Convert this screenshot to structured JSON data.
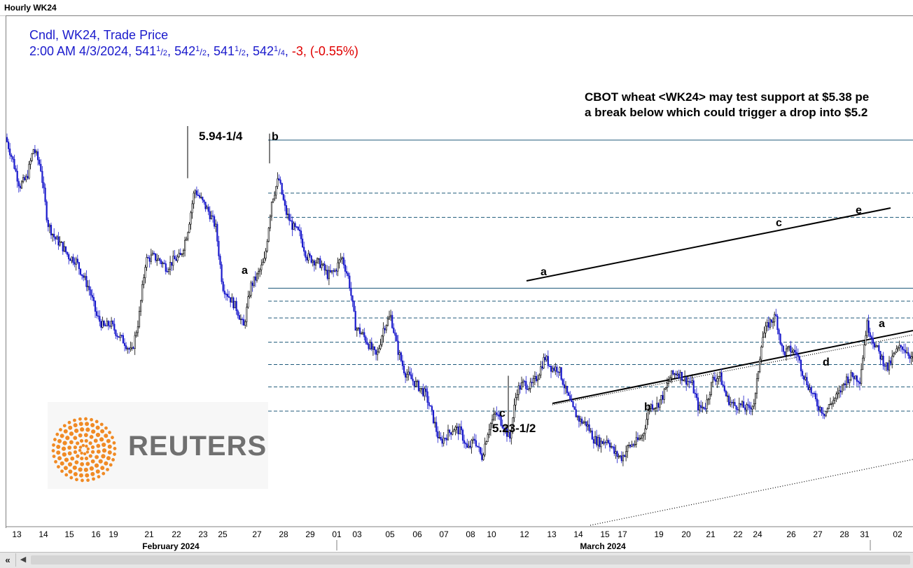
{
  "window": {
    "title": "Hourly WK24"
  },
  "header": {
    "line1": "Cndl, WK24, Trade Price",
    "datetime": "2:00 AM 4/3/2024,",
    "ohlc": [
      {
        "int": "541",
        "num": "1",
        "den": "2",
        "sep": ","
      },
      {
        "int": "542",
        "num": "1",
        "den": "2",
        "sep": ","
      },
      {
        "int": "541",
        "num": "1",
        "den": "2",
        "sep": ","
      },
      {
        "int": "542",
        "num": "1",
        "den": "4",
        "sep": ","
      }
    ],
    "change": "-3, (-0.55%)",
    "colors": {
      "text": "#1a1acc",
      "change": "#e00000"
    }
  },
  "headline": {
    "line1": "CBOT wheat <WK24> may test support at $5.38 pe",
    "line2": "a break below which could trigger a drop into $5.2"
  },
  "logo": {
    "text": "REUTERS",
    "color": "#f08a24"
  },
  "chart_data": {
    "type": "candlestick",
    "instrument": "WK24",
    "interval": "Hourly",
    "x_axis": {
      "tick_labels": [
        "13",
        "14",
        "15",
        "16",
        "19",
        "21",
        "22",
        "23",
        "25",
        "27",
        "28",
        "29",
        "01",
        "03",
        "05",
        "06",
        "07",
        "08",
        "10",
        "12",
        "13",
        "14",
        "15",
        "17",
        "19",
        "20",
        "21",
        "22",
        "24",
        "26",
        "27",
        "28",
        "31",
        "02"
      ],
      "month_labels": [
        "February 2024",
        "March 2024"
      ]
    },
    "y_range": [
      5.02,
      6.16
    ],
    "approx_close_path": [
      [
        0,
        5.95
      ],
      [
        10,
        5.89
      ],
      [
        20,
        5.82
      ],
      [
        30,
        5.84
      ],
      [
        40,
        5.92
      ],
      [
        50,
        5.87
      ],
      [
        60,
        5.72
      ],
      [
        70,
        5.68
      ],
      [
        80,
        5.66
      ],
      [
        90,
        5.63
      ],
      [
        100,
        5.62
      ],
      [
        110,
        5.58
      ],
      [
        120,
        5.54
      ],
      [
        130,
        5.47
      ],
      [
        140,
        5.44
      ],
      [
        150,
        5.45
      ],
      [
        160,
        5.42
      ],
      [
        170,
        5.4
      ],
      [
        180,
        5.37
      ],
      [
        190,
        5.46
      ],
      [
        200,
        5.62
      ],
      [
        210,
        5.63
      ],
      [
        220,
        5.62
      ],
      [
        230,
        5.6
      ],
      [
        240,
        5.62
      ],
      [
        250,
        5.63
      ],
      [
        260,
        5.7
      ],
      [
        270,
        5.81
      ],
      [
        280,
        5.78
      ],
      [
        290,
        5.75
      ],
      [
        300,
        5.71
      ],
      [
        310,
        5.55
      ],
      [
        320,
        5.52
      ],
      [
        330,
        5.49
      ],
      [
        340,
        5.44
      ],
      [
        350,
        5.55
      ],
      [
        360,
        5.58
      ],
      [
        370,
        5.62
      ],
      [
        380,
        5.78
      ],
      [
        390,
        5.84
      ],
      [
        400,
        5.75
      ],
      [
        410,
        5.71
      ],
      [
        420,
        5.69
      ],
      [
        430,
        5.63
      ],
      [
        440,
        5.62
      ],
      [
        450,
        5.61
      ],
      [
        460,
        5.58
      ],
      [
        470,
        5.59
      ],
      [
        480,
        5.63
      ],
      [
        490,
        5.57
      ],
      [
        500,
        5.44
      ],
      [
        510,
        5.42
      ],
      [
        520,
        5.39
      ],
      [
        530,
        5.36
      ],
      [
        540,
        5.44
      ],
      [
        550,
        5.47
      ],
      [
        560,
        5.38
      ],
      [
        570,
        5.32
      ],
      [
        580,
        5.3
      ],
      [
        590,
        5.28
      ],
      [
        600,
        5.26
      ],
      [
        610,
        5.2
      ],
      [
        620,
        5.13
      ],
      [
        630,
        5.15
      ],
      [
        640,
        5.17
      ],
      [
        650,
        5.16
      ],
      [
        660,
        5.11
      ],
      [
        670,
        5.14
      ],
      [
        680,
        5.09
      ],
      [
        690,
        5.17
      ],
      [
        700,
        5.21
      ],
      [
        710,
        5.18
      ],
      [
        720,
        5.14
      ],
      [
        730,
        5.27
      ],
      [
        740,
        5.29
      ],
      [
        750,
        5.28
      ],
      [
        760,
        5.31
      ],
      [
        770,
        5.36
      ],
      [
        780,
        5.33
      ],
      [
        790,
        5.33
      ],
      [
        800,
        5.27
      ],
      [
        810,
        5.22
      ],
      [
        820,
        5.19
      ],
      [
        830,
        5.18
      ],
      [
        840,
        5.14
      ],
      [
        850,
        5.13
      ],
      [
        860,
        5.14
      ],
      [
        870,
        5.1
      ],
      [
        880,
        5.09
      ],
      [
        890,
        5.12
      ],
      [
        900,
        5.13
      ],
      [
        910,
        5.15
      ],
      [
        920,
        5.23
      ],
      [
        930,
        5.23
      ],
      [
        940,
        5.26
      ],
      [
        950,
        5.31
      ],
      [
        960,
        5.32
      ],
      [
        970,
        5.3
      ],
      [
        980,
        5.29
      ],
      [
        990,
        5.22
      ],
      [
        1000,
        5.23
      ],
      [
        1010,
        5.3
      ],
      [
        1020,
        5.31
      ],
      [
        1030,
        5.25
      ],
      [
        1040,
        5.23
      ],
      [
        1050,
        5.23
      ],
      [
        1060,
        5.22
      ],
      [
        1070,
        5.24
      ],
      [
        1080,
        5.41
      ],
      [
        1090,
        5.45
      ],
      [
        1100,
        5.47
      ],
      [
        1110,
        5.37
      ],
      [
        1120,
        5.38
      ],
      [
        1130,
        5.37
      ],
      [
        1140,
        5.31
      ],
      [
        1150,
        5.27
      ],
      [
        1160,
        5.23
      ],
      [
        1170,
        5.21
      ],
      [
        1180,
        5.24
      ],
      [
        1190,
        5.26
      ],
      [
        1200,
        5.3
      ],
      [
        1210,
        5.31
      ],
      [
        1220,
        5.3
      ],
      [
        1230,
        5.45
      ],
      [
        1240,
        5.4
      ],
      [
        1250,
        5.36
      ],
      [
        1260,
        5.33
      ],
      [
        1270,
        5.37
      ],
      [
        1280,
        5.39
      ],
      [
        1290,
        5.37
      ],
      [
        1300,
        5.34
      ]
    ],
    "horizontal_levels": [
      {
        "value": 5.9425,
        "style": "solid"
      },
      {
        "value": 5.545,
        "style": "solid"
      },
      {
        "value": 5.8,
        "style": "dashed"
      },
      {
        "value": 5.735,
        "style": "dashed"
      },
      {
        "value": 5.51,
        "style": "dashed"
      },
      {
        "value": 5.465,
        "style": "dashed"
      },
      {
        "value": 5.4,
        "style": "dashed"
      },
      {
        "value": 5.34,
        "style": "dashed"
      },
      {
        "value": 5.28,
        "style": "dashed"
      },
      {
        "value": 5.215,
        "style": "dashed"
      }
    ],
    "annotations": {
      "price_labels": [
        "5.94-1/4",
        "5.23-1/2"
      ],
      "wave_labels": [
        "b",
        "a",
        "a",
        "c",
        "b",
        "c",
        "e",
        "d",
        "a"
      ]
    },
    "colors": {
      "up": "#1a1acc",
      "down": "#000000",
      "levels": "#1f5a7a"
    }
  }
}
